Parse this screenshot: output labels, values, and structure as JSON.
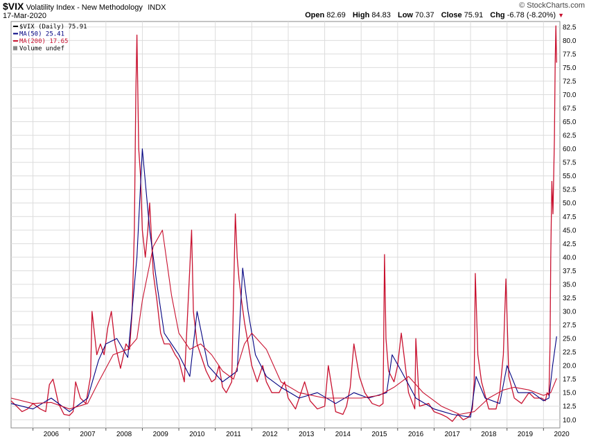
{
  "header": {
    "symbol": "$VIX",
    "description": "Volatility Index - New Methodology",
    "exchange": "INDX",
    "date": "17-Mar-2020",
    "brand": "© StockCharts.com",
    "open_label": "Open",
    "open": "82.69",
    "high_label": "High",
    "high": "84.83",
    "low_label": "Low",
    "low": "70.37",
    "close_label": "Close",
    "close": "75.91",
    "chg_label": "Chg",
    "chg": "-6.78 (-8.20%)"
  },
  "colors": {
    "price": "#c8102e",
    "ma50": "#000080",
    "ma200": "#c8102e",
    "grid": "#dcdcdc"
  },
  "chart_data": {
    "type": "line",
    "title": "$VIX Volatility Index - New Methodology INDX",
    "x_unit": "year",
    "xlim": [
      2005.4,
      2020.45
    ],
    "ylim": [
      8.5,
      83.5
    ],
    "y_ticks": [
      10.0,
      12.5,
      15.0,
      17.5,
      20.0,
      22.5,
      25.0,
      27.5,
      30.0,
      32.5,
      35.0,
      37.5,
      40.0,
      42.5,
      45.0,
      47.5,
      50.0,
      52.5,
      55.0,
      57.5,
      60.0,
      62.5,
      65.0,
      67.5,
      70.0,
      72.5,
      75.0,
      77.5,
      80.0,
      82.5
    ],
    "x_ticks": [
      "2006",
      "2007",
      "2008",
      "2009",
      "2010",
      "2011",
      "2012",
      "2013",
      "2014",
      "2015",
      "2016",
      "2017",
      "2018",
      "2019",
      "2020"
    ],
    "legend_position": "top-left",
    "legend": [
      {
        "label": "$VIX (Daily) 75.91",
        "color": "#000000",
        "style": "line"
      },
      {
        "label": "MA(50) 25.41",
        "color": "#000080",
        "style": "line"
      },
      {
        "label": "MA(200) 17.65",
        "color": "#c8102e",
        "style": "line"
      },
      {
        "label": "Volume undef",
        "color": "#888888",
        "style": "box"
      }
    ],
    "series": [
      {
        "name": "$VIX (Daily)",
        "x": [
          2005.4,
          2005.55,
          2005.7,
          2005.85,
          2006.0,
          2006.2,
          2006.35,
          2006.45,
          2006.55,
          2006.7,
          2006.85,
          2007.0,
          2007.1,
          2007.17,
          2007.3,
          2007.45,
          2007.58,
          2007.62,
          2007.75,
          2007.85,
          2007.95,
          2008.05,
          2008.15,
          2008.25,
          2008.4,
          2008.55,
          2008.65,
          2008.72,
          2008.78,
          2008.82,
          2008.85,
          2008.9,
          2008.95,
          2009.0,
          2009.08,
          2009.15,
          2009.2,
          2009.3,
          2009.4,
          2009.5,
          2009.6,
          2009.75,
          2009.9,
          2010.0,
          2010.15,
          2010.3,
          2010.35,
          2010.4,
          2010.5,
          2010.6,
          2010.75,
          2010.9,
          2011.0,
          2011.1,
          2011.2,
          2011.3,
          2011.45,
          2011.55,
          2011.6,
          2011.65,
          2011.72,
          2011.8,
          2011.9,
          2012.0,
          2012.15,
          2012.3,
          2012.4,
          2012.55,
          2012.75,
          2012.9,
          2013.0,
          2013.2,
          2013.45,
          2013.6,
          2013.8,
          2014.0,
          2014.1,
          2014.3,
          2014.5,
          2014.6,
          2014.7,
          2014.8,
          2014.95,
          2015.1,
          2015.3,
          2015.5,
          2015.6,
          2015.64,
          2015.68,
          2015.75,
          2015.9,
          2016.0,
          2016.1,
          2016.3,
          2016.47,
          2016.5,
          2016.6,
          2016.85,
          2017.0,
          2017.2,
          2017.35,
          2017.5,
          2017.65,
          2017.8,
          2017.95,
          2018.05,
          2018.1,
          2018.13,
          2018.2,
          2018.3,
          2018.5,
          2018.7,
          2018.8,
          2018.9,
          2018.97,
          2019.05,
          2019.2,
          2019.4,
          2019.6,
          2019.75,
          2019.95,
          2020.05,
          2020.1,
          2020.15,
          2020.18,
          2020.2,
          2020.23,
          2020.26,
          2020.3,
          2020.32,
          2020.34,
          2020.36
        ],
        "y": [
          13.5,
          12.5,
          11.5,
          12.0,
          13.0,
          12.0,
          11.5,
          16.5,
          17.5,
          13.0,
          11.0,
          10.8,
          11.5,
          17.0,
          14.0,
          13.0,
          18.0,
          30.0,
          22.0,
          24.0,
          22.0,
          27.0,
          30.0,
          24.0,
          19.5,
          24.0,
          23.0,
          30.0,
          45.0,
          70.0,
          81.0,
          60.0,
          55.0,
          45.0,
          40.0,
          45.0,
          50.0,
          37.0,
          32.0,
          26.0,
          24.0,
          24.0,
          22.0,
          21.0,
          17.0,
          38.0,
          45.0,
          30.0,
          24.0,
          22.0,
          19.0,
          17.0,
          17.5,
          20.0,
          16.0,
          15.0,
          17.0,
          48.0,
          40.0,
          36.0,
          32.0,
          28.0,
          24.0,
          20.0,
          17.0,
          20.0,
          17.0,
          15.0,
          15.0,
          17.0,
          14.0,
          12.0,
          17.0,
          13.5,
          12.0,
          12.5,
          20.0,
          11.5,
          11.0,
          12.5,
          16.0,
          24.0,
          18.0,
          15.0,
          13.0,
          12.5,
          13.0,
          40.5,
          25.0,
          19.0,
          17.0,
          20.0,
          26.0,
          15.0,
          12.0,
          25.0,
          12.5,
          13.0,
          11.5,
          11.0,
          10.5,
          9.7,
          11.0,
          10.0,
          10.5,
          12.0,
          17.0,
          37.0,
          22.0,
          17.0,
          12.0,
          12.0,
          15.0,
          22.0,
          36.0,
          18.0,
          14.0,
          13.0,
          15.0,
          14.0,
          14.0,
          13.5,
          15.0,
          14.5,
          24.0,
          40.0,
          54.0,
          48.0,
          62.0,
          76.0,
          82.7,
          75.9
        ]
      },
      {
        "name": "MA(50)",
        "x": [
          2005.4,
          2006.0,
          2006.5,
          2007.0,
          2007.5,
          2007.8,
          2008.0,
          2008.3,
          2008.6,
          2008.85,
          2009.0,
          2009.2,
          2009.4,
          2009.6,
          2010.0,
          2010.3,
          2010.5,
          2010.8,
          2011.2,
          2011.6,
          2011.75,
          2011.9,
          2012.1,
          2012.4,
          2012.8,
          2013.3,
          2013.8,
          2014.3,
          2014.8,
          2015.2,
          2015.7,
          2015.85,
          2016.1,
          2016.5,
          2017.0,
          2017.5,
          2018.0,
          2018.15,
          2018.4,
          2018.8,
          2019.0,
          2019.3,
          2019.7,
          2020.0,
          2020.15,
          2020.25,
          2020.36
        ],
        "y": [
          13.0,
          12.0,
          14.0,
          11.5,
          14.0,
          21.0,
          24.0,
          25.0,
          21.5,
          40.0,
          60.0,
          45.0,
          35.0,
          26.0,
          22.0,
          18.0,
          30.0,
          20.0,
          17.0,
          19.0,
          38.0,
          30.0,
          22.0,
          18.0,
          16.0,
          14.0,
          15.0,
          13.0,
          15.0,
          14.0,
          15.0,
          22.0,
          19.0,
          14.0,
          12.0,
          11.0,
          10.5,
          18.0,
          14.0,
          13.0,
          20.0,
          15.0,
          15.0,
          13.5,
          14.0,
          20.0,
          25.4
        ]
      },
      {
        "name": "MA(200)",
        "x": [
          2005.4,
          2006.0,
          2006.5,
          2007.0,
          2007.5,
          2007.8,
          2008.2,
          2008.6,
          2008.85,
          2009.0,
          2009.3,
          2009.55,
          2009.8,
          2010.0,
          2010.3,
          2010.6,
          2010.9,
          2011.2,
          2011.5,
          2011.8,
          2012.0,
          2012.4,
          2012.8,
          2013.3,
          2014.0,
          2014.5,
          2015.0,
          2015.5,
          2015.9,
          2016.3,
          2016.7,
          2017.2,
          2017.7,
          2018.1,
          2018.5,
          2018.9,
          2019.2,
          2019.6,
          2020.0,
          2020.2,
          2020.36
        ],
        "y": [
          14.0,
          13.0,
          13.2,
          12.0,
          13.0,
          17.0,
          22.0,
          23.0,
          25.0,
          32.0,
          42.0,
          45.0,
          33.0,
          26.0,
          23.0,
          24.0,
          22.0,
          19.0,
          17.5,
          24.0,
          26.0,
          23.0,
          17.0,
          15.0,
          14.0,
          14.0,
          14.0,
          14.5,
          16.0,
          18.0,
          15.0,
          12.5,
          11.0,
          11.5,
          14.0,
          15.5,
          16.0,
          15.5,
          14.5,
          15.0,
          17.65
        ]
      }
    ]
  }
}
